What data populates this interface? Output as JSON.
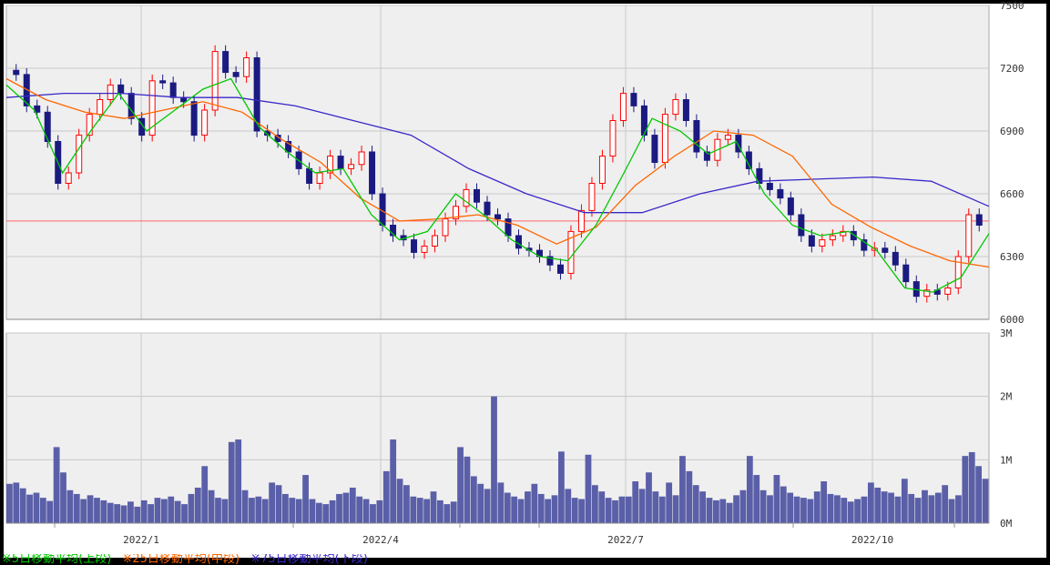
{
  "chart_data": [
    {
      "type": "candlestick",
      "panel": "price",
      "ylim": [
        6000,
        7500
      ],
      "y_ticks": [
        "6000",
        "6300",
        "6600",
        "6900",
        "7200",
        "7500"
      ],
      "x_ticks": [
        "2022/1",
        "2022/4",
        "2022/7",
        "2022/10"
      ],
      "reference_line": 6470,
      "colors": {
        "up": "#ff0000",
        "down": "#1a1a80",
        "ma_short": "#00c800",
        "ma_mid": "#ff6600",
        "ma_long": "#3a28c8",
        "ref": "#ff6666"
      },
      "closes_approx": [
        7170,
        7020,
        6990,
        6850,
        6650,
        6700,
        6880,
        6980,
        7050,
        7120,
        7080,
        6960,
        6880,
        7140,
        7130,
        7060,
        7040,
        6880,
        7000,
        7280,
        7180,
        7160,
        7250,
        6900,
        6880,
        6850,
        6800,
        6720,
        6650,
        6700,
        6780,
        6720,
        6740,
        6800,
        6600,
        6450,
        6400,
        6380,
        6320,
        6350,
        6400,
        6480,
        6540,
        6620,
        6560,
        6500,
        6480,
        6400,
        6340,
        6330,
        6300,
        6260,
        6220,
        6420,
        6520,
        6650,
        6780,
        6950,
        7080,
        7020,
        6880,
        6750,
        6980,
        7050,
        6950,
        6800,
        6760,
        6860,
        6880,
        6800,
        6720,
        6650,
        6620,
        6580,
        6500,
        6400,
        6350,
        6380,
        6400,
        6420,
        6380,
        6330,
        6340,
        6320,
        6260,
        6180,
        6110,
        6140,
        6120,
        6150,
        6300,
        6500,
        6450
      ],
      "ma_short": [
        7120,
        7000,
        6700,
        6900,
        7080,
        6900,
        7000,
        7100,
        7150,
        6920,
        6800,
        6700,
        6720,
        6500,
        6380,
        6420,
        6600,
        6500,
        6380,
        6300,
        6280,
        6450,
        6700,
        6960,
        6900,
        6790,
        6850,
        6600,
        6450,
        6400,
        6420,
        6330,
        6150,
        6130,
        6200,
        6410
      ],
      "ma_mid": [
        7150,
        7050,
        6990,
        6960,
        7000,
        7040,
        6990,
        6860,
        6750,
        6580,
        6470,
        6480,
        6500,
        6450,
        6360,
        6440,
        6640,
        6780,
        6900,
        6880,
        6780,
        6550,
        6440,
        6350,
        6280,
        6250
      ],
      "ma_long": [
        7060,
        7080,
        7080,
        7060,
        7060,
        7020,
        6950,
        6880,
        6720,
        6600,
        6510,
        6510,
        6600,
        6660,
        6670,
        6680,
        6660,
        6540
      ]
    },
    {
      "type": "bar",
      "panel": "volume",
      "ylim": [
        0,
        3000000
      ],
      "y_ticks": [
        "0M",
        "1M",
        "2M",
        "3M"
      ],
      "color": "#5a5fa8",
      "values_approx": [
        620000,
        640000,
        550000,
        450000,
        480000,
        400000,
        350000,
        1200000,
        800000,
        520000,
        460000,
        380000,
        440000,
        400000,
        360000,
        320000,
        300000,
        280000,
        340000,
        260000,
        360000,
        300000,
        400000,
        380000,
        420000,
        350000,
        300000,
        460000,
        560000,
        900000,
        520000,
        400000,
        380000,
        1280000,
        1320000,
        520000,
        400000,
        420000,
        380000,
        640000,
        600000,
        460000,
        400000,
        380000,
        760000,
        380000,
        320000,
        300000,
        360000,
        460000,
        480000,
        560000,
        420000,
        380000,
        300000,
        360000,
        820000,
        1320000,
        700000,
        600000,
        420000,
        400000,
        380000,
        500000,
        360000,
        300000,
        340000,
        1200000,
        1050000,
        740000,
        620000,
        540000,
        2000000,
        640000,
        480000,
        420000,
        380000,
        500000,
        620000,
        460000,
        380000,
        440000,
        1130000,
        540000,
        400000,
        380000,
        1080000,
        600000,
        500000,
        400000,
        360000,
        420000,
        420000,
        660000,
        540000,
        800000,
        500000,
        420000,
        640000,
        440000,
        1060000,
        820000,
        600000,
        500000,
        400000,
        360000,
        380000,
        320000,
        440000,
        520000,
        1060000,
        760000,
        520000,
        440000,
        760000,
        580000,
        480000,
        420000,
        400000,
        380000,
        500000,
        660000,
        460000,
        440000,
        400000,
        340000,
        380000,
        420000,
        640000,
        560000,
        500000,
        480000,
        420000,
        700000,
        460000,
        400000,
        520000,
        440000,
        480000,
        600000,
        380000,
        440000,
        1060000,
        1120000,
        900000,
        700000
      ]
    }
  ],
  "legend": {
    "short": "※5日移動平均(上段)",
    "mid": "※25日移動平均(中段)",
    "long": "※75日移動平均(下段)"
  }
}
